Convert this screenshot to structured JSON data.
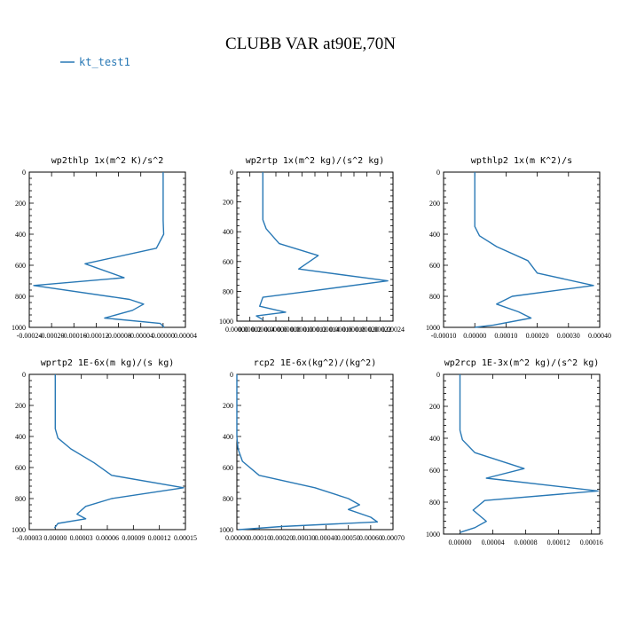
{
  "figure": {
    "title": "CLUBB VAR at90E,70N",
    "legend": [
      {
        "label": "kt_test1",
        "color": "#2878b5"
      }
    ]
  },
  "chart_data": [
    {
      "type": "line",
      "title": "wp2thlp   1x(m^2 K)/s^2",
      "ylim": [
        1000,
        0
      ],
      "yticks": [
        "0",
        "200",
        "400",
        "600",
        "800",
        "1000"
      ],
      "xlim": [
        -0.00024,
        4e-05
      ],
      "xticks": [
        "-0.00024",
        "-0.00020",
        "-0.00016",
        "-0.00012",
        "-0.00008",
        "-0.00004",
        "0.00000",
        "0.00004"
      ],
      "series": [
        {
          "name": "kt_test1",
          "points": [
            [
              0.0,
              0
            ],
            [
              0.0,
              310
            ],
            [
              1e-06,
              400
            ],
            [
              -1.2e-05,
              490
            ],
            [
              -0.00014,
              590
            ],
            [
              -7e-05,
              680
            ],
            [
              -0.000232,
              730
            ],
            [
              -6e-05,
              820
            ],
            [
              -3.5e-05,
              850
            ],
            [
              -5.5e-05,
              890
            ],
            [
              -0.000105,
              940
            ],
            [
              -5e-06,
              975
            ],
            [
              2e-06,
              1000
            ]
          ]
        }
      ]
    },
    {
      "type": "line",
      "title": "wp2rtp   1x(m^2 kg)/(s^2 kg)",
      "ylim": [
        1000,
        0
      ],
      "yticks": [
        "0",
        "200",
        "400",
        "600",
        "800",
        "1000"
      ],
      "xlim": [
        0.0,
        0.00024
      ],
      "xticks": [
        "0.00000",
        "0.00002",
        "0.00004",
        "0.00006",
        "0.00008",
        "0.00010",
        "0.00012",
        "0.00014",
        "0.00016",
        "0.00018",
        "0.00020",
        "0.00022",
        "0.00024"
      ],
      "series": [
        {
          "name": "kt_test1",
          "points": [
            [
              4e-05,
              0
            ],
            [
              4e-05,
              320
            ],
            [
              4.5e-05,
              380
            ],
            [
              6.5e-05,
              480
            ],
            [
              0.000125,
              560
            ],
            [
              9.5e-05,
              650
            ],
            [
              0.000232,
              730
            ],
            [
              0.00011,
              800
            ],
            [
              4e-05,
              840
            ],
            [
              3.5e-05,
              900
            ],
            [
              7.5e-05,
              940
            ],
            [
              3e-05,
              965
            ],
            [
              4e-05,
              990
            ]
          ]
        }
      ]
    },
    {
      "type": "line",
      "title": "wpthlp2   1x(m K^2)/s",
      "ylim": [
        1000,
        0
      ],
      "yticks": [
        "0",
        "200",
        "400",
        "600",
        "800",
        "1000"
      ],
      "xlim": [
        -0.0001,
        0.0004
      ],
      "xticks": [
        "-0.00010",
        "0.00000",
        "0.00010",
        "0.00020",
        "0.00030",
        "0.00040"
      ],
      "series": [
        {
          "name": "kt_test1",
          "points": [
            [
              0.0,
              0
            ],
            [
              0.0,
              350
            ],
            [
              1.5e-05,
              410
            ],
            [
              7e-05,
              480
            ],
            [
              0.00017,
              570
            ],
            [
              0.0002,
              650
            ],
            [
              0.00038,
              730
            ],
            [
              0.00012,
              800
            ],
            [
              7e-05,
              850
            ],
            [
              0.00014,
              900
            ],
            [
              0.00018,
              940
            ],
            [
              6e-05,
              985
            ],
            [
              0.0,
              1000
            ]
          ]
        }
      ]
    },
    {
      "type": "line",
      "title": "wprtp2   1E-6x(m kg)/(s kg)",
      "ylim": [
        1000,
        0
      ],
      "yticks": [
        "0",
        "200",
        "400",
        "600",
        "800",
        "1000"
      ],
      "xlim": [
        -3e-05,
        0.00015
      ],
      "xticks": [
        "-0.00003",
        "0.00000",
        "0.00003",
        "0.00006",
        "0.00009",
        "0.00012",
        "0.00015"
      ],
      "series": [
        {
          "name": "kt_test1",
          "points": [
            [
              0.0,
              0
            ],
            [
              0.0,
              350
            ],
            [
              3e-06,
              410
            ],
            [
              1.8e-05,
              480
            ],
            [
              4.5e-05,
              570
            ],
            [
              6.5e-05,
              650
            ],
            [
              0.000148,
              730
            ],
            [
              6.5e-05,
              800
            ],
            [
              3.5e-05,
              850
            ],
            [
              2.5e-05,
              900
            ],
            [
              3.5e-05,
              930
            ],
            [
              3e-06,
              960
            ],
            [
              -1e-06,
              990
            ]
          ]
        }
      ]
    },
    {
      "type": "line",
      "title": "rcp2   1E-6x(kg^2)/(kg^2)",
      "ylim": [
        1000,
        0
      ],
      "yticks": [
        "0",
        "200",
        "400",
        "600",
        "800",
        "1000"
      ],
      "xlim": [
        0.0,
        0.0007
      ],
      "xticks": [
        "0.00000",
        "0.00010",
        "0.00020",
        "0.00030",
        "0.00040",
        "0.00050",
        "0.00060",
        "0.00070"
      ],
      "series": [
        {
          "name": "kt_test1",
          "points": [
            [
              0.0,
              0
            ],
            [
              0.0,
              400
            ],
            [
              5e-06,
              480
            ],
            [
              2.5e-05,
              560
            ],
            [
              0.0001,
              650
            ],
            [
              0.00035,
              730
            ],
            [
              0.0005,
              800
            ],
            [
              0.00055,
              840
            ],
            [
              0.0005,
              870
            ],
            [
              0.0006,
              920
            ],
            [
              0.00063,
              950
            ],
            [
              0.0002,
              980
            ],
            [
              1e-05,
              1000
            ]
          ]
        }
      ]
    },
    {
      "type": "line",
      "title": "wp2rcp   1E-3x(m^2 kg)/(s^2 kg)",
      "ylim": [
        1000,
        0
      ],
      "yticks": [
        "0",
        "200",
        "400",
        "600",
        "800",
        "1000"
      ],
      "xlim": [
        -2e-05,
        0.00017
      ],
      "xticks": [
        "0.00000",
        "0.00004",
        "0.00008",
        "0.00012",
        "0.00016"
      ],
      "series": [
        {
          "name": "kt_test1",
          "points": [
            [
              0.0,
              0
            ],
            [
              0.0,
              350
            ],
            [
              3e-06,
              410
            ],
            [
              1.8e-05,
              490
            ],
            [
              7.8e-05,
              590
            ],
            [
              3.2e-05,
              650
            ],
            [
              0.000168,
              730
            ],
            [
              3e-05,
              790
            ],
            [
              1.6e-05,
              850
            ],
            [
              3.2e-05,
              920
            ],
            [
              1.8e-05,
              960
            ],
            [
              0.0,
              990
            ]
          ]
        }
      ]
    }
  ]
}
